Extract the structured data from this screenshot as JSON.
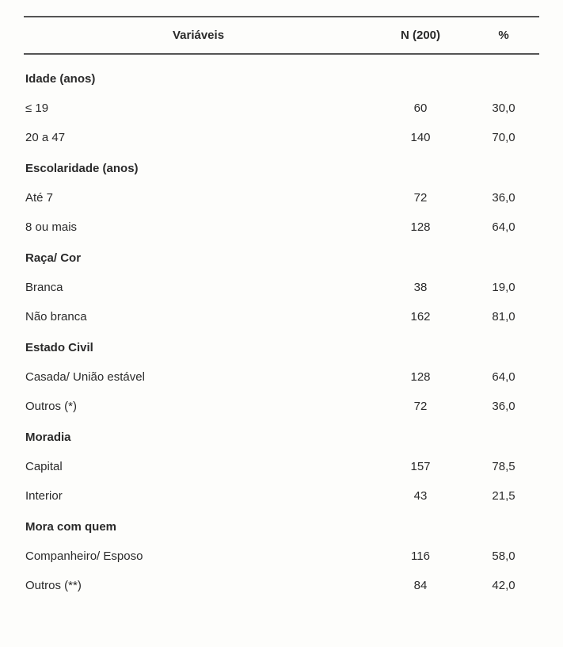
{
  "columns": {
    "variables": "Variáveis",
    "n": "N (200)",
    "pct": "%"
  },
  "sections": [
    {
      "title": "Idade (anos)",
      "rows": [
        {
          "label": "≤ 19",
          "n": "60",
          "pct": "30,0"
        },
        {
          "label": "20 a 47",
          "n": "140",
          "pct": "70,0"
        }
      ]
    },
    {
      "title": "Escolaridade (anos)",
      "rows": [
        {
          "label": "Até  7",
          "n": "72",
          "pct": "36,0"
        },
        {
          "label": "8 ou mais",
          "n": "128",
          "pct": "64,0"
        }
      ]
    },
    {
      "title": "Raça/ Cor",
      "rows": [
        {
          "label": "Branca",
          "n": "38",
          "pct": "19,0"
        },
        {
          "label": "Não branca",
          "n": "162",
          "pct": "81,0"
        }
      ]
    },
    {
      "title": "Estado Civil",
      "rows": [
        {
          "label": "Casada/ União estável",
          "n": "128",
          "pct": "64,0"
        },
        {
          "label": "Outros (*)",
          "n": "72",
          "pct": "36,0"
        }
      ]
    },
    {
      "title": "Moradia",
      "rows": [
        {
          "label": "Capital",
          "n": "157",
          "pct": "78,5"
        },
        {
          "label": "Interior",
          "n": "43",
          "pct": "21,5"
        }
      ]
    },
    {
      "title": "Mora com quem",
      "rows": [
        {
          "label": "Companheiro/ Esposo",
          "n": "116",
          "pct": "58,0"
        },
        {
          "label": "Outros (**)",
          "n": "84",
          "pct": "42,0"
        }
      ]
    }
  ]
}
